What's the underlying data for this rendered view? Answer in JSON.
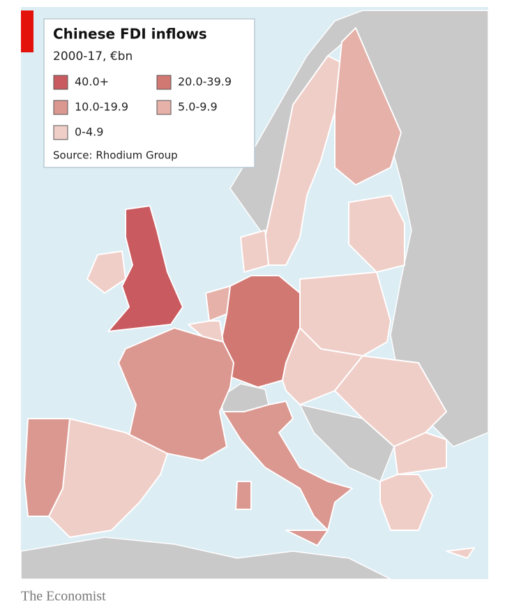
{
  "title": "Chinese FDI inflows",
  "subtitle": "2000-17, €bn",
  "legend": [
    {
      "label": "40.0+",
      "color": "#c95a5f"
    },
    {
      "label": "20.0-39.9",
      "color": "#d27872"
    },
    {
      "label": "10.0-19.9",
      "color": "#db9890"
    },
    {
      "label": "5.0-9.9",
      "color": "#e5b1a9"
    },
    {
      "label": "0-4.9",
      "color": "#f0cec8"
    }
  ],
  "source": "Source: Rhodium Group",
  "footer": "The Economist"
}
